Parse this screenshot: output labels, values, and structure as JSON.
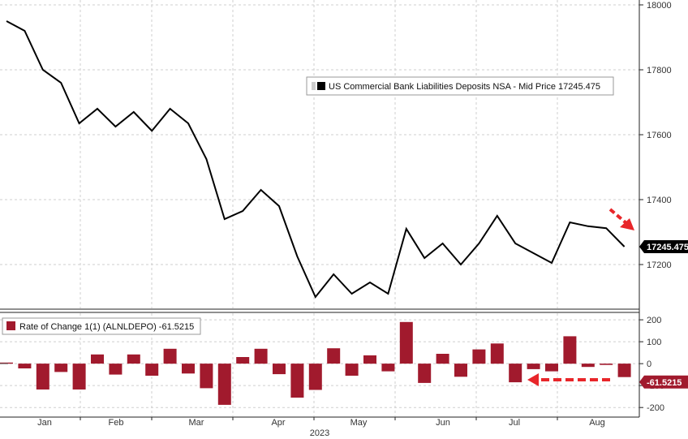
{
  "chart_data": [
    {
      "type": "line",
      "legend": "US Commercial Bank Liabilities Deposits NSA - Mid Price 17245.475",
      "last_value_label": "17245.475",
      "ylim": [
        17050,
        18000
      ],
      "yticks": [
        17200,
        17400,
        17600,
        17800,
        18000
      ],
      "ytick_labels": [
        "17200",
        "17400",
        "17600",
        "17800",
        "18000"
      ],
      "x": [
        0,
        1,
        2,
        3,
        4,
        5,
        6,
        7,
        8,
        9,
        10,
        11,
        12,
        13,
        14,
        15,
        16,
        17,
        18,
        19,
        20,
        21,
        22,
        23,
        24,
        25,
        26,
        27,
        28,
        29,
        30,
        31,
        32,
        33,
        34
      ],
      "values": [
        17950,
        17920,
        17800,
        17760,
        17635,
        17680,
        17625,
        17670,
        17612,
        17680,
        17635,
        17525,
        17340,
        17365,
        17430,
        17380,
        17225,
        17100,
        17170,
        17110,
        17145,
        17110,
        17310,
        17220,
        17265,
        17200,
        17265,
        17350,
        17265,
        17235,
        17205,
        17330,
        17318,
        17312,
        17255
      ],
      "color": "#000000",
      "arrow_color": "#e8262a"
    },
    {
      "type": "bar",
      "legend": "Rate of Change 1(1) (ALNLDEPO) -61.5215",
      "last_value_label": "-61.5215",
      "ylim": [
        -240,
        230
      ],
      "yticks": [
        -200,
        -100,
        0,
        100,
        200
      ],
      "ytick_labels": [
        "-200",
        "-100",
        "0",
        "100",
        "200"
      ],
      "x": [
        0,
        1,
        2,
        3,
        4,
        5,
        6,
        7,
        8,
        9,
        10,
        11,
        12,
        13,
        14,
        15,
        16,
        17,
        18,
        19,
        20,
        21,
        22,
        23,
        24,
        25,
        26,
        27,
        28,
        29,
        30,
        31,
        32,
        33,
        34
      ],
      "values": [
        5,
        -22,
        -118,
        -38,
        -118,
        42,
        -50,
        42,
        -55,
        68,
        -45,
        -112,
        -188,
        30,
        68,
        -48,
        -155,
        -120,
        70,
        -55,
        38,
        -35,
        190,
        -88,
        45,
        -60,
        65,
        92,
        -85,
        -25,
        -35,
        125,
        -15,
        -6,
        -61.5
      ],
      "color": "#a11a2d",
      "arrow_color": "#e8262a"
    }
  ],
  "x_axis": {
    "month_labels": [
      "Jan",
      "Feb",
      "Mar",
      "Apr",
      "May",
      "Jun",
      "Jul",
      "Aug"
    ],
    "year_label": "2023"
  }
}
